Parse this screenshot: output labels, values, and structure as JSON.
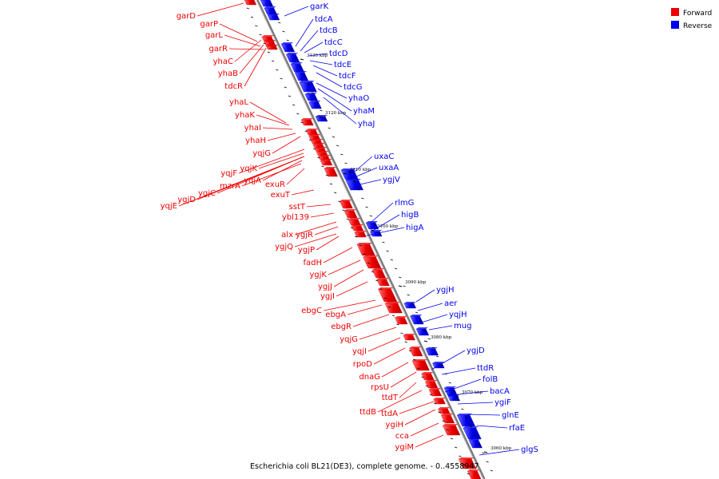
{
  "caption": "Escherichia coli BL21(DE3), complete genome. - 0..4558947",
  "colors": {
    "forward": "#ee0000",
    "reverse": "#0000ee",
    "backbone": "#7a7a7a",
    "tick": "#000000"
  },
  "legend": [
    {
      "label": "Forward",
      "color": "#ee0000"
    },
    {
      "label": "Reverse",
      "color": "#0000ee"
    }
  ],
  "kbp_ticks": [
    "3130 kbp",
    "3120 kbp",
    "3110 kbp",
    "3100 kbp",
    "3090 kbp",
    "3080 kbp",
    "3070 kbp",
    "3060 kbp"
  ],
  "forward_genes": [
    "garD",
    "garP",
    "garL",
    "garR",
    "yhaC",
    "yhaB",
    "tdcR",
    "yhaL",
    "yhaK",
    "yhaI",
    "yhaH",
    "yqjG",
    "yqjF",
    "yqjK",
    "yqjA",
    "mzrA",
    "ygjC",
    "ygjD",
    "yqjE",
    "exuR",
    "exuT",
    "sstT",
    "ybl139",
    "alx",
    "ygjR",
    "ygjQ",
    "ygjP",
    "fadH",
    "ygjK",
    "ygjJ",
    "ygjI",
    "ebgC",
    "ebgA",
    "ebgR",
    "yqjG",
    "yqjI",
    "rpoD",
    "dnaG",
    "rpsU",
    "ttdT",
    "ttdB",
    "ttdA",
    "ygiH",
    "cca",
    "ygiM"
  ],
  "reverse_genes": [
    "garK",
    "tdcA",
    "tdcB",
    "tdcC",
    "tdcD",
    "tdcE",
    "tdcF",
    "tdcG",
    "yhaO",
    "yhaM",
    "yhaJ",
    "uxaC",
    "uxaA",
    "ygjV",
    "rlmG",
    "higB",
    "higA",
    "ygjH",
    "aer",
    "yqjH",
    "mug",
    "ygjD",
    "ttdR",
    "folB",
    "bacA",
    "ygiF",
    "glnE",
    "rfaE",
    "glgS"
  ]
}
